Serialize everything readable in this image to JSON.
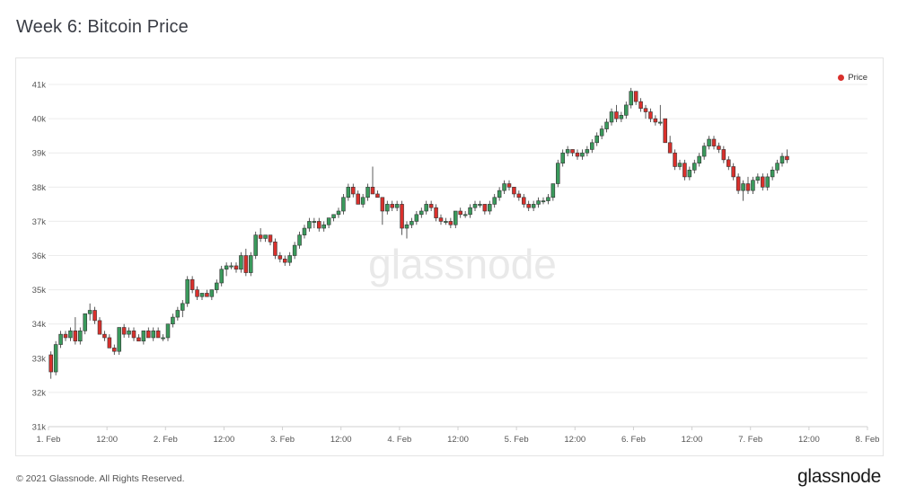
{
  "header": {
    "title": "Week 6: Bitcoin Price"
  },
  "footer": {
    "copyright": "© 2021 Glassnode. All Rights Reserved.",
    "brand": "glassnode"
  },
  "watermark": "glassnode",
  "colors": {
    "up": "#3a9a5c",
    "down": "#d9302c",
    "grid": "#ececec"
  },
  "chart_data": {
    "type": "candlestick",
    "title": "Week 6: Bitcoin Price",
    "legend": [
      {
        "name": "Price",
        "color": "#d9302c"
      }
    ],
    "legend_position": "top-right",
    "grid": true,
    "ylim": [
      31000,
      41500
    ],
    "y_ticks": [
      31000,
      32000,
      33000,
      34000,
      35000,
      36000,
      37000,
      38000,
      39000,
      40000,
      41000
    ],
    "y_tick_labels": [
      "31k",
      "32k",
      "33k",
      "34k",
      "35k",
      "36k",
      "37k",
      "38k",
      "39k",
      "40k",
      "41k"
    ],
    "xlim": [
      0,
      168
    ],
    "x_ticks": [
      0,
      12,
      24,
      36,
      48,
      60,
      72,
      84,
      96,
      108,
      120,
      132,
      144,
      156,
      168
    ],
    "x_tick_labels": [
      "1. Feb",
      "12:00",
      "2. Feb",
      "12:00",
      "3. Feb",
      "12:00",
      "4. Feb",
      "12:00",
      "5. Feb",
      "12:00",
      "6. Feb",
      "12:00",
      "7. Feb",
      "12:00",
      "8. Feb"
    ],
    "candles": [
      [
        33.1,
        33.2,
        32.4,
        32.6
      ],
      [
        32.6,
        33.5,
        32.5,
        33.4
      ],
      [
        33.4,
        33.8,
        33.3,
        33.7
      ],
      [
        33.7,
        33.8,
        33.5,
        33.6
      ],
      [
        33.6,
        33.9,
        33.5,
        33.8
      ],
      [
        33.8,
        34.2,
        33.4,
        33.5
      ],
      [
        33.5,
        33.9,
        33.4,
        33.8
      ],
      [
        33.8,
        34.3,
        33.7,
        34.3
      ],
      [
        34.3,
        34.6,
        34.1,
        34.4
      ],
      [
        34.4,
        34.5,
        34.0,
        34.1
      ],
      [
        34.1,
        34.2,
        33.7,
        33.7
      ],
      [
        33.7,
        33.8,
        33.5,
        33.6
      ],
      [
        33.6,
        33.7,
        33.3,
        33.3
      ],
      [
        33.3,
        33.4,
        33.1,
        33.2
      ],
      [
        33.2,
        33.9,
        33.1,
        33.9
      ],
      [
        33.9,
        34.0,
        33.6,
        33.7
      ],
      [
        33.7,
        33.9,
        33.6,
        33.8
      ],
      [
        33.8,
        33.9,
        33.5,
        33.6
      ],
      [
        33.6,
        33.7,
        33.5,
        33.5
      ],
      [
        33.5,
        33.8,
        33.4,
        33.8
      ],
      [
        33.8,
        33.9,
        33.6,
        33.6
      ],
      [
        33.6,
        33.9,
        33.5,
        33.8
      ],
      [
        33.8,
        33.9,
        33.6,
        33.6
      ],
      [
        33.6,
        33.7,
        33.5,
        33.6
      ],
      [
        33.6,
        34.0,
        33.5,
        34.0
      ],
      [
        34.0,
        34.3,
        33.9,
        34.2
      ],
      [
        34.2,
        34.5,
        34.1,
        34.4
      ],
      [
        34.4,
        34.7,
        34.2,
        34.6
      ],
      [
        34.6,
        35.4,
        34.5,
        35.3
      ],
      [
        35.3,
        35.4,
        34.9,
        35.0
      ],
      [
        35.0,
        35.1,
        34.7,
        34.8
      ],
      [
        34.8,
        34.9,
        34.7,
        34.9
      ],
      [
        34.9,
        35.0,
        34.8,
        34.8
      ],
      [
        34.8,
        35.0,
        34.7,
        35.0
      ],
      [
        35.0,
        35.3,
        34.9,
        35.2
      ],
      [
        35.2,
        35.7,
        35.1,
        35.6
      ],
      [
        35.6,
        35.8,
        35.4,
        35.7
      ],
      [
        35.7,
        35.8,
        35.6,
        35.7
      ],
      [
        35.7,
        35.8,
        35.5,
        35.6
      ],
      [
        35.6,
        36.1,
        35.5,
        36.0
      ],
      [
        36.0,
        36.2,
        35.4,
        35.5
      ],
      [
        35.5,
        36.1,
        35.4,
        36.0
      ],
      [
        36.0,
        36.7,
        35.9,
        36.6
      ],
      [
        36.6,
        36.8,
        36.4,
        36.5
      ],
      [
        36.5,
        36.6,
        36.4,
        36.6
      ],
      [
        36.6,
        36.6,
        36.3,
        36.4
      ],
      [
        36.4,
        36.5,
        35.9,
        36.0
      ],
      [
        36.0,
        36.1,
        35.8,
        35.9
      ],
      [
        35.9,
        36.0,
        35.7,
        35.8
      ],
      [
        35.8,
        36.1,
        35.7,
        36.0
      ],
      [
        36.0,
        36.4,
        35.9,
        36.3
      ],
      [
        36.3,
        36.7,
        36.2,
        36.6
      ],
      [
        36.6,
        36.9,
        36.5,
        36.8
      ],
      [
        36.8,
        37.1,
        36.7,
        37.0
      ],
      [
        37.0,
        37.1,
        36.8,
        37.0
      ],
      [
        37.0,
        37.1,
        36.7,
        36.8
      ],
      [
        36.8,
        37.0,
        36.7,
        36.9
      ],
      [
        36.9,
        37.1,
        36.8,
        37.1
      ],
      [
        37.1,
        37.2,
        37.0,
        37.2
      ],
      [
        37.2,
        37.4,
        37.1,
        37.3
      ],
      [
        37.3,
        37.8,
        37.2,
        37.7
      ],
      [
        37.7,
        38.1,
        37.6,
        38.0
      ],
      [
        38.0,
        38.1,
        37.7,
        37.8
      ],
      [
        37.8,
        37.9,
        37.5,
        37.5
      ],
      [
        37.5,
        37.8,
        37.4,
        37.7
      ],
      [
        37.7,
        38.1,
        37.6,
        38.0
      ],
      [
        38.0,
        38.6,
        37.8,
        37.8
      ],
      [
        37.8,
        37.9,
        37.7,
        37.7
      ],
      [
        37.7,
        37.6,
        36.9,
        37.3
      ],
      [
        37.3,
        37.6,
        37.2,
        37.5
      ],
      [
        37.5,
        37.6,
        37.3,
        37.4
      ],
      [
        37.4,
        37.6,
        37.3,
        37.5
      ],
      [
        37.5,
        37.6,
        36.6,
        36.8
      ],
      [
        36.8,
        37.0,
        36.5,
        36.9
      ],
      [
        36.9,
        37.1,
        36.8,
        37.0
      ],
      [
        37.0,
        37.3,
        36.9,
        37.2
      ],
      [
        37.2,
        37.4,
        37.1,
        37.3
      ],
      [
        37.3,
        37.6,
        37.2,
        37.5
      ],
      [
        37.5,
        37.6,
        37.3,
        37.4
      ],
      [
        37.4,
        37.5,
        37.0,
        37.1
      ],
      [
        37.1,
        37.2,
        36.9,
        37.0
      ],
      [
        37.0,
        37.1,
        36.9,
        37.0
      ],
      [
        37.0,
        37.1,
        36.8,
        36.9
      ],
      [
        36.9,
        37.3,
        36.8,
        37.3
      ],
      [
        37.3,
        37.4,
        37.1,
        37.2
      ],
      [
        37.2,
        37.3,
        37.1,
        37.2
      ],
      [
        37.2,
        37.5,
        37.1,
        37.4
      ],
      [
        37.4,
        37.6,
        37.3,
        37.5
      ],
      [
        37.5,
        37.6,
        37.4,
        37.5
      ],
      [
        37.5,
        37.5,
        37.2,
        37.3
      ],
      [
        37.3,
        37.6,
        37.2,
        37.5
      ],
      [
        37.5,
        37.8,
        37.4,
        37.7
      ],
      [
        37.7,
        38.0,
        37.6,
        37.9
      ],
      [
        37.9,
        38.2,
        37.8,
        38.1
      ],
      [
        38.1,
        38.2,
        37.9,
        38.0
      ],
      [
        38.0,
        38.0,
        37.7,
        37.8
      ],
      [
        37.8,
        37.9,
        37.6,
        37.7
      ],
      [
        37.7,
        37.8,
        37.4,
        37.5
      ],
      [
        37.5,
        37.6,
        37.3,
        37.4
      ],
      [
        37.4,
        37.6,
        37.3,
        37.5
      ],
      [
        37.5,
        37.7,
        37.4,
        37.6
      ],
      [
        37.6,
        37.7,
        37.5,
        37.6
      ],
      [
        37.6,
        37.8,
        37.5,
        37.7
      ],
      [
        37.7,
        38.1,
        37.6,
        38.1
      ],
      [
        38.1,
        38.8,
        38.0,
        38.7
      ],
      [
        38.7,
        39.1,
        38.6,
        39.0
      ],
      [
        39.0,
        39.2,
        38.9,
        39.1
      ],
      [
        39.1,
        39.1,
        38.9,
        39.0
      ],
      [
        39.0,
        39.1,
        38.8,
        38.9
      ],
      [
        38.9,
        39.1,
        38.8,
        39.0
      ],
      [
        39.0,
        39.2,
        38.9,
        39.1
      ],
      [
        39.1,
        39.4,
        39.0,
        39.3
      ],
      [
        39.3,
        39.6,
        39.2,
        39.5
      ],
      [
        39.5,
        39.8,
        39.4,
        39.7
      ],
      [
        39.7,
        40.0,
        39.6,
        39.9
      ],
      [
        39.9,
        40.3,
        39.8,
        40.2
      ],
      [
        40.2,
        40.4,
        39.9,
        40.0
      ],
      [
        40.0,
        40.2,
        39.9,
        40.1
      ],
      [
        40.1,
        40.5,
        40.0,
        40.4
      ],
      [
        40.4,
        40.9,
        40.3,
        40.8
      ],
      [
        40.8,
        40.8,
        40.4,
        40.5
      ],
      [
        40.5,
        40.6,
        40.2,
        40.3
      ],
      [
        40.3,
        40.4,
        40.0,
        40.2
      ],
      [
        40.2,
        40.3,
        39.9,
        40.0
      ],
      [
        40.0,
        40.1,
        39.8,
        39.9
      ],
      [
        39.9,
        40.4,
        39.8,
        39.9
      ],
      [
        40.0,
        40.0,
        39.3,
        39.3
      ],
      [
        39.3,
        39.5,
        39.0,
        39.0
      ],
      [
        39.0,
        39.1,
        38.5,
        38.6
      ],
      [
        38.6,
        38.8,
        38.5,
        38.7
      ],
      [
        38.7,
        38.8,
        38.2,
        38.3
      ],
      [
        38.3,
        38.6,
        38.2,
        38.5
      ],
      [
        38.5,
        38.8,
        38.4,
        38.7
      ],
      [
        38.7,
        39.0,
        38.6,
        38.9
      ],
      [
        38.9,
        39.3,
        38.8,
        39.2
      ],
      [
        39.2,
        39.5,
        39.1,
        39.4
      ],
      [
        39.4,
        39.5,
        39.1,
        39.2
      ],
      [
        39.2,
        39.3,
        39.0,
        39.1
      ],
      [
        39.1,
        39.2,
        38.7,
        38.8
      ],
      [
        38.8,
        38.9,
        38.5,
        38.6
      ],
      [
        38.6,
        38.7,
        38.2,
        38.3
      ],
      [
        38.3,
        38.4,
        37.8,
        37.9
      ],
      [
        37.9,
        38.2,
        37.6,
        38.1
      ],
      [
        38.1,
        38.3,
        37.8,
        37.9
      ],
      [
        37.9,
        38.3,
        37.8,
        38.2
      ],
      [
        38.2,
        38.4,
        38.1,
        38.3
      ],
      [
        38.3,
        38.4,
        37.9,
        38.0
      ],
      [
        38.0,
        38.4,
        37.9,
        38.3
      ],
      [
        38.3,
        38.6,
        38.2,
        38.5
      ],
      [
        38.5,
        38.8,
        38.4,
        38.7
      ],
      [
        38.7,
        39.0,
        38.6,
        38.9
      ],
      [
        38.9,
        39.1,
        38.7,
        38.8
      ]
    ]
  }
}
